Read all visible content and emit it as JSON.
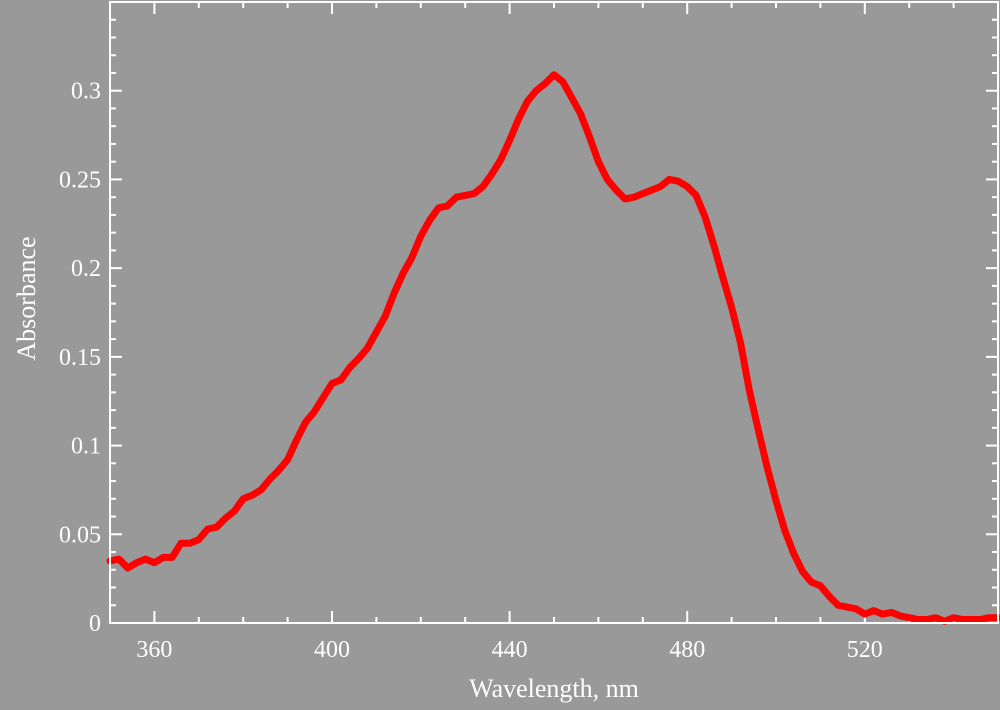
{
  "chart_data": {
    "type": "line",
    "title": "",
    "xlabel": "Wavelength, nm",
    "ylabel": "Absorbance",
    "xlim": [
      350,
      550
    ],
    "ylim": [
      0,
      0.35
    ],
    "grid": false,
    "background_color": "#999999",
    "line_color": "#ff0000",
    "x_ticks": [
      360,
      400,
      440,
      480,
      520
    ],
    "x_tick_labels": [
      "360",
      "400",
      "440",
      "480",
      "520"
    ],
    "y_ticks": [
      0,
      0.05,
      0.1,
      0.15,
      0.2,
      0.25,
      0.3
    ],
    "y_tick_labels": [
      "0",
      "0.05",
      "0.1",
      "0.15",
      "0.2",
      "0.25",
      "0.3"
    ],
    "series": [
      {
        "x": [
          350,
          352,
          354,
          356,
          358,
          360,
          362,
          364,
          366,
          368,
          370,
          372,
          374,
          376,
          378,
          380,
          382,
          384,
          386,
          388,
          390,
          392,
          394,
          396,
          398,
          400,
          402,
          404,
          406,
          408,
          410,
          412,
          414,
          416,
          418,
          420,
          422,
          424,
          426,
          428,
          430,
          432,
          434,
          436,
          438,
          440,
          442,
          444,
          446,
          448,
          450,
          452,
          454,
          456,
          458,
          460,
          462,
          464,
          466,
          468,
          470,
          472,
          474,
          476,
          478,
          480,
          482,
          484,
          486,
          488,
          490,
          492,
          494,
          496,
          498,
          500,
          502,
          504,
          506,
          508,
          510,
          512,
          514,
          516,
          518,
          520,
          522,
          524,
          526,
          528,
          530,
          532,
          534,
          536,
          538,
          540,
          542,
          544,
          546,
          548,
          550
        ],
        "y": [
          0.035,
          0.036,
          0.031,
          0.034,
          0.036,
          0.034,
          0.037,
          0.037,
          0.045,
          0.045,
          0.047,
          0.053,
          0.054,
          0.059,
          0.063,
          0.07,
          0.072,
          0.075,
          0.081,
          0.086,
          0.092,
          0.103,
          0.113,
          0.119,
          0.127,
          0.135,
          0.137,
          0.144,
          0.149,
          0.155,
          0.164,
          0.173,
          0.186,
          0.197,
          0.206,
          0.218,
          0.227,
          0.234,
          0.235,
          0.24,
          0.241,
          0.242,
          0.246,
          0.253,
          0.261,
          0.272,
          0.284,
          0.294,
          0.3,
          0.304,
          0.309,
          0.305,
          0.296,
          0.287,
          0.274,
          0.26,
          0.25,
          0.244,
          0.239,
          0.24,
          0.242,
          0.244,
          0.246,
          0.25,
          0.249,
          0.246,
          0.241,
          0.229,
          0.213,
          0.195,
          0.178,
          0.158,
          0.131,
          0.109,
          0.088,
          0.069,
          0.052,
          0.039,
          0.029,
          0.023,
          0.021,
          0.015,
          0.01,
          0.009,
          0.008,
          0.005,
          0.007,
          0.005,
          0.006,
          0.004,
          0.003,
          0.002,
          0.002,
          0.003,
          0.001,
          0.003,
          0.002,
          0.002,
          0.002,
          0.003,
          0.003
        ]
      }
    ]
  }
}
